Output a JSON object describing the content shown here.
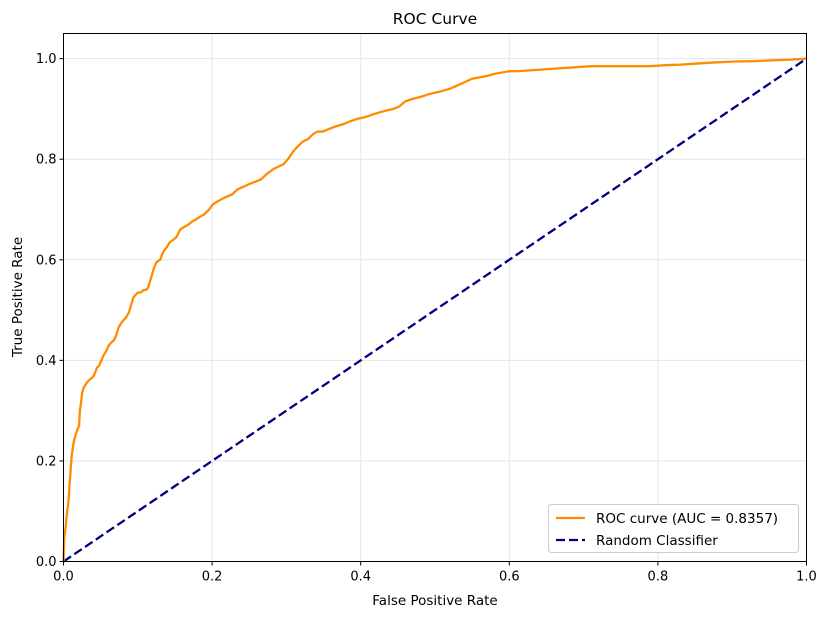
{
  "chart_data": {
    "type": "line",
    "title": "ROC Curve",
    "xlabel": "False Positive Rate",
    "ylabel": "True Positive Rate",
    "xlim": [
      0.0,
      1.0
    ],
    "ylim": [
      0.0,
      1.05
    ],
    "grid": true,
    "legend_position": "lower-right",
    "xticks": [
      "0.0",
      "0.2",
      "0.4",
      "0.6",
      "0.8",
      "1.0"
    ],
    "yticks": [
      "0.0",
      "0.2",
      "0.4",
      "0.6",
      "0.8",
      "1.0"
    ],
    "series": [
      {
        "name": "ROC curve (AUC = 0.8357)",
        "color": "#ff8c00",
        "style": "solid",
        "x": [
          0,
          0.001,
          0.003,
          0.004,
          0.005,
          0.006,
          0.007,
          0.008,
          0.009,
          0.011,
          0.013,
          0.014,
          0.016,
          0.018,
          0.021,
          0.022,
          0.024,
          0.025,
          0.027,
          0.031,
          0.034,
          0.038,
          0.041,
          0.045,
          0.048,
          0.051,
          0.054,
          0.058,
          0.061,
          0.064,
          0.068,
          0.071,
          0.074,
          0.078,
          0.081,
          0.084,
          0.088,
          0.091,
          0.094,
          0.097,
          0.1,
          0.104,
          0.108,
          0.111,
          0.114,
          0.116,
          0.119,
          0.122,
          0.125,
          0.13,
          0.134,
          0.139,
          0.143,
          0.148,
          0.152,
          0.157,
          0.162,
          0.168,
          0.172,
          0.178,
          0.183,
          0.189,
          0.196,
          0.201,
          0.206,
          0.212,
          0.219,
          0.227,
          0.234,
          0.242,
          0.249,
          0.258,
          0.266,
          0.273,
          0.282,
          0.289,
          0.296,
          0.302,
          0.309,
          0.315,
          0.322,
          0.329,
          0.336,
          0.342,
          0.349,
          0.357,
          0.366,
          0.377,
          0.385,
          0.395,
          0.409,
          0.418,
          0.43,
          0.444,
          0.452,
          0.46,
          0.47,
          0.483,
          0.493,
          0.508,
          0.52,
          0.535,
          0.55,
          0.568,
          0.581,
          0.6,
          0.61,
          0.64,
          0.66,
          0.68,
          0.71,
          0.73,
          0.76,
          0.79,
          0.81,
          0.83,
          0.85,
          0.87,
          0.9,
          0.93,
          0.96,
          0.98,
          0.99,
          1.0
        ],
        "y": [
          0,
          0.045,
          0.07,
          0.085,
          0.1,
          0.11,
          0.125,
          0.15,
          0.17,
          0.21,
          0.23,
          0.24,
          0.25,
          0.26,
          0.27,
          0.3,
          0.32,
          0.335,
          0.345,
          0.355,
          0.36,
          0.365,
          0.37,
          0.385,
          0.39,
          0.4,
          0.41,
          0.42,
          0.43,
          0.435,
          0.44,
          0.45,
          0.465,
          0.475,
          0.48,
          0.485,
          0.495,
          0.51,
          0.525,
          0.53,
          0.535,
          0.535,
          0.54,
          0.54,
          0.545,
          0.555,
          0.57,
          0.585,
          0.595,
          0.6,
          0.615,
          0.625,
          0.635,
          0.64,
          0.645,
          0.66,
          0.665,
          0.67,
          0.675,
          0.68,
          0.685,
          0.69,
          0.7,
          0.71,
          0.715,
          0.72,
          0.725,
          0.73,
          0.74,
          0.745,
          0.75,
          0.755,
          0.76,
          0.77,
          0.78,
          0.785,
          0.79,
          0.8,
          0.815,
          0.825,
          0.835,
          0.84,
          0.85,
          0.855,
          0.855,
          0.86,
          0.865,
          0.87,
          0.875,
          0.88,
          0.885,
          0.89,
          0.895,
          0.9,
          0.905,
          0.915,
          0.92,
          0.925,
          0.93,
          0.935,
          0.94,
          0.95,
          0.96,
          0.965,
          0.97,
          0.975,
          0.975,
          0.978,
          0.98,
          0.982,
          0.985,
          0.985,
          0.985,
          0.985,
          0.987,
          0.988,
          0.99,
          0.992,
          0.994,
          0.995,
          0.997,
          0.998,
          0.999,
          1.0
        ]
      },
      {
        "name": "Random Classifier",
        "color": "#000080",
        "style": "dashed",
        "x": [
          0,
          1
        ],
        "y": [
          0,
          1
        ]
      }
    ]
  }
}
